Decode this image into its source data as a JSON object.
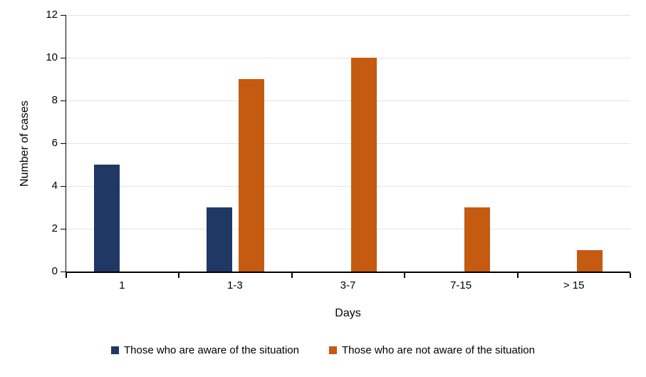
{
  "chart_data": {
    "type": "bar",
    "title": "",
    "xlabel": "Days",
    "ylabel": "Number of cases",
    "categories": [
      "1",
      "1-3",
      "3-7",
      "7-15",
      "> 15"
    ],
    "series": [
      {
        "name": "Those who are aware of the situation",
        "color": "#1F3864",
        "values": [
          5,
          3,
          0,
          0,
          0
        ]
      },
      {
        "name": "Those who are not aware of the situation",
        "color": "#C55A11",
        "values": [
          0,
          9,
          10,
          3,
          1
        ]
      }
    ],
    "ylim": [
      0,
      12
    ],
    "y_ticks": [
      0,
      2,
      4,
      6,
      8,
      10,
      12
    ],
    "grid": "horizontal",
    "gridline_color": "#E3E3E3",
    "axis_color": "#000000",
    "legend_position": "bottom"
  }
}
